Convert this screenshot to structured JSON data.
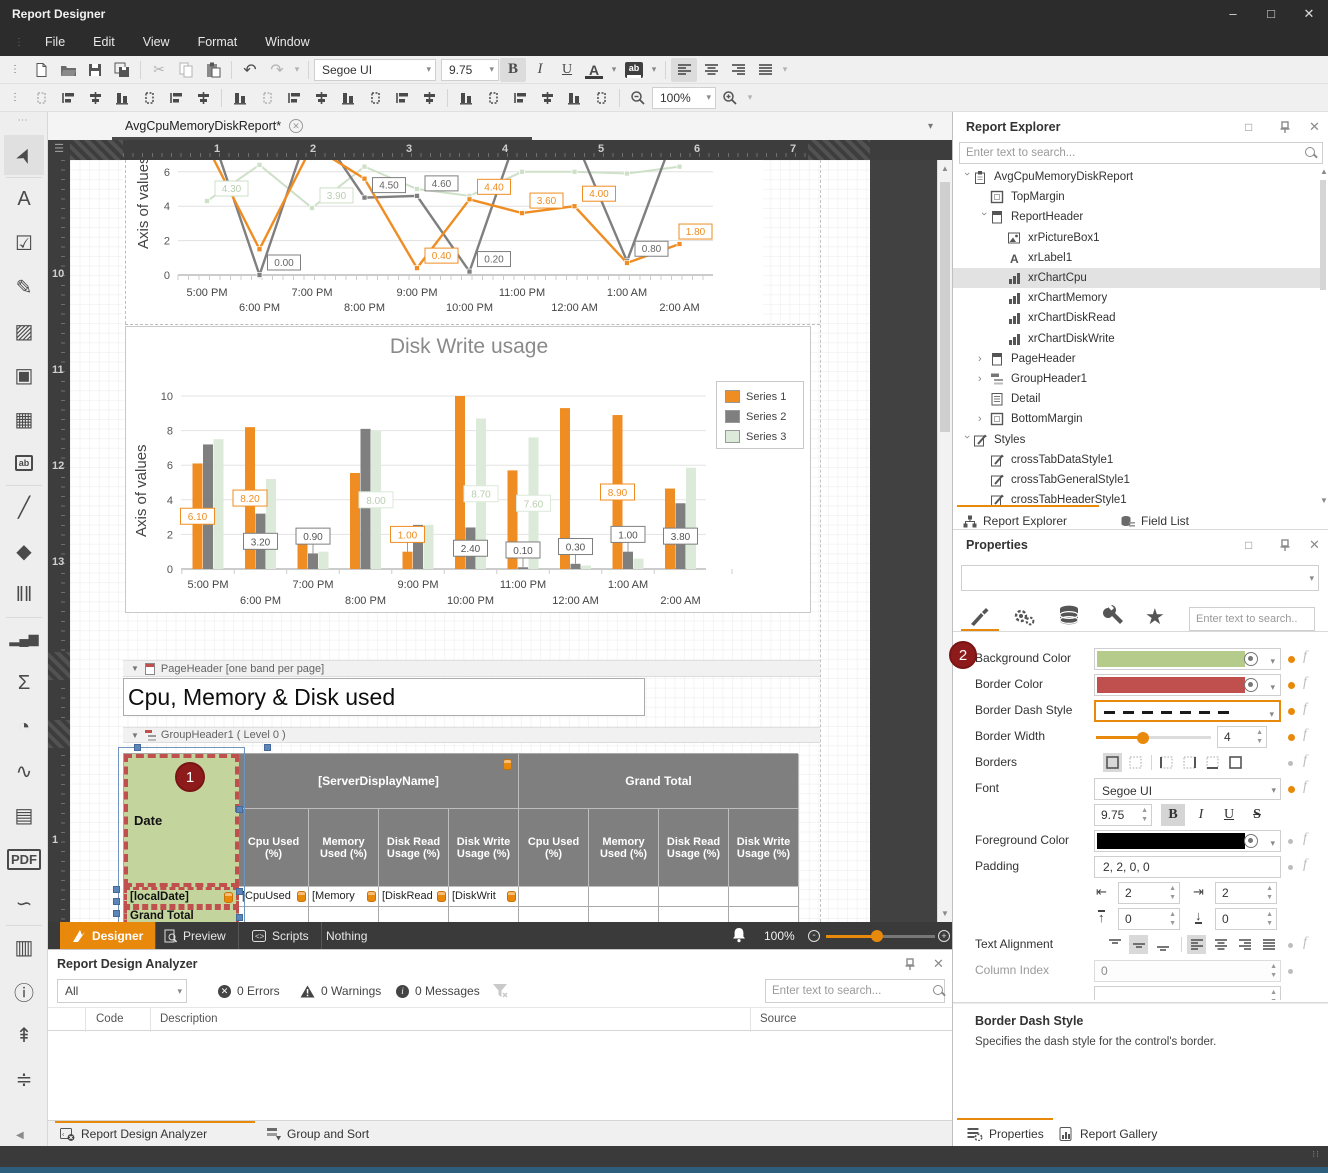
{
  "window": {
    "title": "Report Designer"
  },
  "menu": {
    "items": [
      "File",
      "Edit",
      "View",
      "Format",
      "Window"
    ]
  },
  "toolbar": {
    "font_name": "Segoe UI",
    "font_size": "9.75",
    "zoom": "100%",
    "bold": "B",
    "italic": "I",
    "underline": "U",
    "font_color": "A",
    "highlight": "ab"
  },
  "doc_tab": {
    "label": "AvgCpuMemoryDiskReport*"
  },
  "rulers": {
    "horizontal": [
      "1",
      "2",
      "3",
      "4",
      "5",
      "6",
      "7"
    ],
    "vertical": [
      "10",
      "11",
      "12",
      "13",
      "1",
      "2"
    ]
  },
  "toolbox": {
    "items": [
      {
        "name": "pointer-icon",
        "glyph": "➤"
      },
      {
        "name": "label-icon",
        "glyph": "A"
      },
      {
        "name": "checkbox-icon",
        "glyph": "☑"
      },
      {
        "name": "richtext-icon",
        "glyph": "✎"
      },
      {
        "name": "picture-box-icon",
        "glyph": "▨"
      },
      {
        "name": "panel-icon",
        "glyph": "▣"
      },
      {
        "name": "table-icon",
        "glyph": "▦"
      },
      {
        "name": "character-comb-icon",
        "glyph": "ab"
      },
      {
        "name": "line-icon",
        "glyph": "╱"
      },
      {
        "name": "shape-icon",
        "glyph": "◆"
      },
      {
        "name": "barcode-icon",
        "glyph": "‖‖"
      },
      {
        "name": "chart-icon",
        "glyph": "▂▄▆"
      },
      {
        "name": "summary-icon",
        "glyph": "Σ"
      },
      {
        "name": "gauge-icon",
        "glyph": "◔"
      },
      {
        "name": "sparkline-icon",
        "glyph": "∿"
      },
      {
        "name": "pivot-grid-icon",
        "glyph": "▤"
      },
      {
        "name": "pdf-content-icon",
        "glyph": "PDF"
      },
      {
        "name": "signature-icon",
        "glyph": "∽"
      },
      {
        "name": "subreport-icon",
        "glyph": "▥"
      },
      {
        "name": "page-info-icon",
        "glyph": "ⓘ"
      },
      {
        "name": "page-break-icon",
        "glyph": "⇞"
      },
      {
        "name": "cross-band-icon",
        "glyph": "≑"
      }
    ]
  },
  "design": {
    "bands": {
      "page_header": "PageHeader [one band per page]",
      "group_header": "GroupHeader1 ( Level 0 )"
    },
    "title_label": "Cpu, Memory & Disk used",
    "badge": "1",
    "table": {
      "corner": "Date",
      "span_headers": [
        "[ServerDisplayName]",
        "Grand Total"
      ],
      "columns": [
        "Cpu Used (%)",
        "Memory Used (%)",
        "Disk Read Usage (%)",
        "Disk Write Usage (%)",
        "Cpu Used (%)",
        "Memory Used (%)",
        "Disk Read Usage (%)",
        "Disk Write Usage (%)"
      ],
      "data_row": {
        "label": "[localDate]",
        "cells": [
          "[CpuUsed",
          "[Memory",
          "[DiskRead",
          "[DiskWrit",
          "",
          "",
          "",
          ""
        ]
      },
      "total_row": {
        "label": "Grand Total",
        "cells": [
          "",
          "",
          "",
          "",
          "",
          "",
          "",
          ""
        ]
      }
    }
  },
  "chart_data": [
    {
      "type": "line",
      "title": "",
      "ylabel": "Axis of values",
      "x": [
        "5:00 PM",
        "6:00 PM",
        "7:00 PM",
        "8:00 PM",
        "9:00 PM",
        "10:00 PM",
        "11:00 PM",
        "12:00 AM",
        "1:00 AM",
        "2:00 AM"
      ],
      "ylim": [
        0,
        6.8
      ],
      "yticks": [
        0,
        2,
        4,
        6
      ],
      "grid": true,
      "note": "top portion of chart clipped by design scroll position",
      "series": [
        {
          "name": "Series 1",
          "color": "#ef8d22",
          "values": [
            7.5,
            1.5,
            7.5,
            5.6,
            0.4,
            4.4,
            3.6,
            4.0,
            0.7,
            1.8
          ]
        },
        {
          "name": "Series 2",
          "color": "#7f7f7f",
          "values": [
            9.0,
            0.0,
            9.0,
            4.5,
            4.6,
            0.2,
            9.0,
            8.0,
            0.8,
            9.0
          ]
        },
        {
          "name": "Series 3",
          "color": "#cfe0c8",
          "values": [
            4.3,
            6.4,
            3.9,
            6.3,
            5.0,
            4.6,
            6.0,
            6.0,
            5.9,
            6.3
          ]
        }
      ],
      "point_labels": [
        {
          "series": 2,
          "index": 0,
          "text": "4.30"
        },
        {
          "series": 2,
          "index": 2,
          "text": "3.90"
        },
        {
          "series": 1,
          "index": 1,
          "text": "0.00"
        },
        {
          "series": 1,
          "index": 3,
          "text": "4.50"
        },
        {
          "series": 1,
          "index": 4,
          "text": "4.60"
        },
        {
          "series": 1,
          "index": 5,
          "text": "0.20"
        },
        {
          "series": 1,
          "index": 8,
          "text": "0.80"
        },
        {
          "series": 0,
          "index": 4,
          "text": "0.40"
        },
        {
          "series": 0,
          "index": 5,
          "text": "4.40"
        },
        {
          "series": 0,
          "index": 6,
          "text": "3.60"
        },
        {
          "series": 0,
          "index": 7,
          "text": "4.00"
        },
        {
          "series": 0,
          "index": 9,
          "text": "1.80"
        }
      ]
    },
    {
      "type": "bar",
      "title": "Disk Write usage",
      "ylabel": "Axis of values",
      "categories": [
        "5:00 PM",
        "6:00 PM",
        "7:00 PM",
        "8:00 PM",
        "9:00 PM",
        "10:00 PM",
        "11:00 PM",
        "12:00 AM",
        "1:00 AM",
        "2:00 AM"
      ],
      "ylim": [
        0,
        10
      ],
      "yticks": [
        0,
        2,
        4,
        6,
        8,
        10
      ],
      "grid": true,
      "legend": [
        "Series 1",
        "Series 2",
        "Series 3"
      ],
      "legend_position": "right",
      "series": [
        {
          "name": "Series 1",
          "color": "#ef8d22",
          "values": [
            6.1,
            8.2,
            1.6,
            5.55,
            1.0,
            10.0,
            5.7,
            9.3,
            8.9,
            4.65
          ]
        },
        {
          "name": "Series 2",
          "color": "#7f7f7f",
          "values": [
            7.2,
            3.2,
            0.9,
            8.1,
            2.55,
            2.4,
            0.1,
            0.3,
            1.0,
            3.8
          ]
        },
        {
          "name": "Series 3",
          "color": "#dcead9",
          "values": [
            7.5,
            5.2,
            1.0,
            8.0,
            2.55,
            8.7,
            7.6,
            0.2,
            0.6,
            5.85
          ]
        }
      ],
      "point_labels": [
        {
          "series": 0,
          "index": 0,
          "text": "6.10"
        },
        {
          "series": 0,
          "index": 1,
          "text": "8.20"
        },
        {
          "series": 1,
          "index": 1,
          "text": "3.20"
        },
        {
          "series": 1,
          "index": 2,
          "text": "0.90"
        },
        {
          "series": 2,
          "index": 3,
          "text": "8.00"
        },
        {
          "series": 0,
          "index": 4,
          "text": "1.00"
        },
        {
          "series": 1,
          "index": 5,
          "text": "2.40"
        },
        {
          "series": 2,
          "index": 5,
          "text": "8.70"
        },
        {
          "series": 1,
          "index": 6,
          "text": "0.10"
        },
        {
          "series": 2,
          "index": 6,
          "text": "7.60"
        },
        {
          "series": 1,
          "index": 7,
          "text": "0.30"
        },
        {
          "series": 0,
          "index": 8,
          "text": "8.90"
        },
        {
          "series": 1,
          "index": 8,
          "text": "1.00"
        },
        {
          "series": 1,
          "index": 9,
          "text": "3.80"
        }
      ]
    }
  ],
  "view_tabs": {
    "designer": "Designer",
    "preview": "Preview",
    "scripts": "Scripts",
    "nothing": "Nothing",
    "zoom": "100%"
  },
  "analyzer": {
    "title": "Report Design Analyzer",
    "filter_value": "All",
    "errors": "0 Errors",
    "warnings": "0 Warnings",
    "messages": "0 Messages",
    "search_placeholder": "Enter text to search...",
    "columns": [
      "Code",
      "Description",
      "Source"
    ],
    "tabs": {
      "analyzer": "Report Design Analyzer",
      "group_sort": "Group and Sort"
    }
  },
  "explorer": {
    "title": "Report Explorer",
    "search_placeholder": "Enter text to search...",
    "tree": [
      {
        "label": "AvgCpuMemoryDiskReport",
        "depth": 0,
        "icon": "report-icon",
        "expand": "open"
      },
      {
        "label": "TopMargin",
        "depth": 1,
        "icon": "margin-icon",
        "expand": "none"
      },
      {
        "label": "ReportHeader",
        "depth": 1,
        "icon": "band-icon",
        "expand": "open"
      },
      {
        "label": "xrPictureBox1",
        "depth": 2,
        "icon": "picture-icon",
        "expand": "none"
      },
      {
        "label": "xrLabel1",
        "depth": 2,
        "icon": "label-icon",
        "expand": "none"
      },
      {
        "label": "xrChartCpu",
        "depth": 2,
        "icon": "chart-icon",
        "expand": "none",
        "selected": true
      },
      {
        "label": "xrChartMemory",
        "depth": 2,
        "icon": "chart-icon",
        "expand": "none"
      },
      {
        "label": "xrChartDiskRead",
        "depth": 2,
        "icon": "chart-icon",
        "expand": "none"
      },
      {
        "label": "xrChartDiskWrite",
        "depth": 2,
        "icon": "chart-icon",
        "expand": "none"
      },
      {
        "label": "PageHeader",
        "depth": 1,
        "icon": "band-icon",
        "expand": "closed"
      },
      {
        "label": "GroupHeader1",
        "depth": 1,
        "icon": "group-icon",
        "expand": "closed"
      },
      {
        "label": "Detail",
        "depth": 1,
        "icon": "detail-icon",
        "expand": "none"
      },
      {
        "label": "BottomMargin",
        "depth": 1,
        "icon": "margin-icon",
        "expand": "closed"
      },
      {
        "label": "Styles",
        "depth": 0,
        "icon": "style-icon",
        "expand": "open"
      },
      {
        "label": "crossTabDataStyle1",
        "depth": 1,
        "icon": "style-icon",
        "expand": "none"
      },
      {
        "label": "crossTabGeneralStyle1",
        "depth": 1,
        "icon": "style-icon",
        "expand": "none"
      },
      {
        "label": "crossTabHeaderStyle1",
        "depth": 1,
        "icon": "style-icon",
        "expand": "none"
      }
    ],
    "tabs": {
      "explorer": "Report Explorer",
      "field_list": "Field List"
    }
  },
  "properties": {
    "title": "Properties",
    "selector_value": "",
    "search_placeholder": "Enter text to search..",
    "badge": "2",
    "rows": {
      "background_color": {
        "label": "Background Color",
        "color": "#b5cb8c"
      },
      "border_color": {
        "label": "Border Color",
        "color": "#c0504d"
      },
      "border_dash_style": {
        "label": "Border Dash Style"
      },
      "border_width": {
        "label": "Border Width",
        "value": "4"
      },
      "borders": {
        "label": "Borders"
      },
      "font": {
        "label": "Font",
        "family": "Segoe UI",
        "size": "9.75",
        "bold": "B",
        "italic": "I",
        "underline": "U",
        "strike": "S"
      },
      "foreground_color": {
        "label": "Foreground Color",
        "color": "#000000"
      },
      "padding": {
        "label": "Padding",
        "value": "2, 2, 0, 0",
        "left": "2",
        "right": "2",
        "top": "0",
        "bottom": "0"
      },
      "text_alignment": {
        "label": "Text Alignment"
      },
      "column_index": {
        "label": "Column Index",
        "value": "0"
      }
    },
    "description": {
      "title": "Border Dash Style",
      "text": "Specifies the dash style for the control's border."
    },
    "tabs": {
      "properties": "Properties",
      "gallery": "Report Gallery"
    }
  },
  "accent_color": "#e8890c"
}
